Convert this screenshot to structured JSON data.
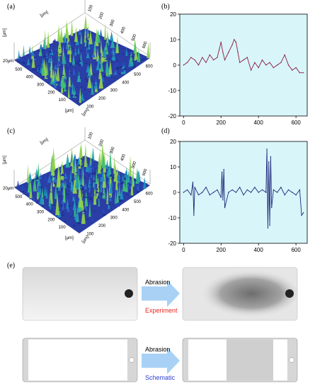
{
  "panels": {
    "a": "(a)",
    "b": "(b)",
    "c": "(c)",
    "d": "(d)",
    "e": "(e)"
  },
  "surface_a": {
    "unit": "[μm]",
    "z_tick": "20μm",
    "x_ticks": [
      "100",
      "200",
      "300",
      "400",
      "500"
    ],
    "y_ticks": [
      "100",
      "200",
      "300",
      "400",
      "500",
      "600"
    ],
    "back_ticks": [
      "100",
      "200",
      "300",
      "400",
      "500",
      "600"
    ],
    "axis_labels": [
      "[μm]",
      "[μm]",
      "[μm]",
      "[μm]"
    ]
  },
  "surface_c": {
    "unit": "[μm]",
    "z_tick": "20μm",
    "x_ticks": [
      "100",
      "200",
      "300",
      "400",
      "500"
    ],
    "y_ticks": [
      "100",
      "200",
      "300",
      "400",
      "500",
      "600"
    ],
    "back_ticks": [
      "100",
      "200",
      "300",
      "400",
      "500",
      "600"
    ],
    "axis_labels": [
      "[μm]",
      "[μm]",
      "[μm]",
      "[μm]"
    ]
  },
  "panel_e": {
    "row1_label_top": "Abrasion",
    "row1_label_bottom": "Experiment",
    "row2_label_top": "Abrasion",
    "row2_label_bottom": "Schematic",
    "experiment_color": "#e8261c",
    "schematic_color": "#2b3fd0",
    "arrow_color": "#9fcbf2"
  },
  "chart_data": [
    {
      "type": "line",
      "panel": "(b)",
      "xlim": [
        -20,
        660
      ],
      "ylim": [
        -20,
        20
      ],
      "xticks": [
        0,
        200,
        400,
        600
      ],
      "yticks": [
        -20,
        -10,
        0,
        10,
        20
      ],
      "background": "#d8f5fa",
      "line_color": "#8b1e3f",
      "series": [
        {
          "x": [
            0,
            20,
            40,
            60,
            80,
            100,
            120,
            140,
            160,
            180,
            190,
            200,
            210,
            220,
            240,
            260,
            270,
            280,
            290,
            300,
            320,
            340,
            360,
            380,
            400,
            420,
            440,
            460,
            480,
            500,
            520,
            540,
            560,
            580,
            600,
            620,
            640
          ],
          "y": [
            0,
            1,
            3,
            2,
            0,
            3,
            1,
            4,
            2,
            3,
            6,
            9,
            5,
            2,
            5,
            8,
            10,
            9,
            5,
            1,
            2,
            3,
            -2,
            1,
            -1,
            2,
            0,
            1,
            -1,
            0,
            1,
            4,
            0,
            -2,
            -1,
            -3,
            -3
          ]
        }
      ]
    },
    {
      "type": "line",
      "panel": "(d)",
      "xlim": [
        -20,
        660
      ],
      "ylim": [
        -20,
        20
      ],
      "xticks": [
        0,
        200,
        400,
        600
      ],
      "yticks": [
        -20,
        -10,
        0,
        10,
        20
      ],
      "background": "#d8f5fa",
      "line_color": "#1f2a7a",
      "series": [
        {
          "x": [
            0,
            20,
            40,
            50,
            55,
            60,
            80,
            100,
            120,
            140,
            160,
            180,
            200,
            205,
            210,
            215,
            220,
            240,
            260,
            280,
            300,
            320,
            340,
            360,
            380,
            400,
            420,
            440,
            445,
            450,
            455,
            460,
            465,
            470,
            480,
            500,
            520,
            540,
            560,
            580,
            600,
            620,
            630,
            640
          ],
          "y": [
            0,
            1,
            -1,
            4,
            -9,
            2,
            -1,
            0,
            2,
            -1,
            0,
            1,
            -2,
            8,
            -3,
            9,
            -6,
            0,
            1,
            0,
            2,
            -1,
            1,
            0,
            2,
            0,
            1,
            0,
            17,
            -14,
            12,
            -13,
            14,
            -6,
            1,
            0,
            2,
            -1,
            1,
            0,
            -1,
            1,
            -9,
            -8
          ]
        }
      ]
    }
  ]
}
